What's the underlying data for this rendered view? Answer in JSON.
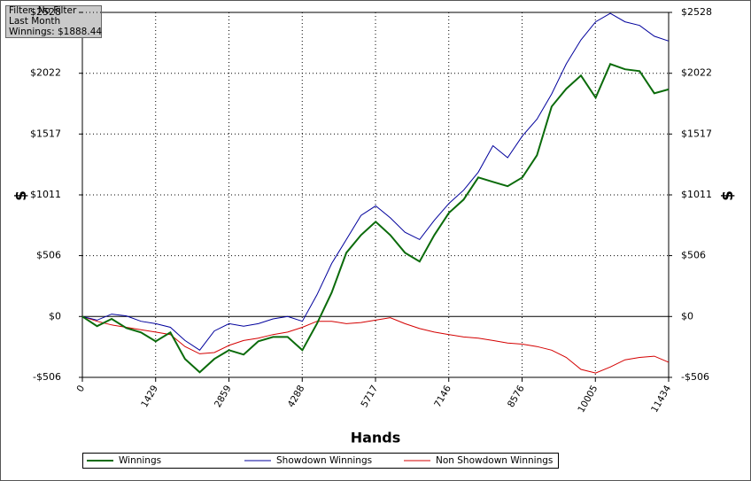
{
  "chart_data": {
    "type": "line",
    "info": [
      "Filter: No Filter",
      "Last Month",
      "Winnings: $1888.44"
    ],
    "xlabel": "Hands",
    "ylabel": "$",
    "y2label": "$",
    "x": [
      0,
      286,
      572,
      858,
      1144,
      1430,
      1716,
      2002,
      2288,
      2574,
      2860,
      3146,
      3432,
      3718,
      4004,
      4290,
      4576,
      4862,
      5148,
      5434,
      5720,
      6006,
      6292,
      6578,
      6864,
      7150,
      7436,
      7722,
      8008,
      8294,
      8580,
      8866,
      9152,
      9438,
      9724,
      10010,
      10296,
      10582,
      10868,
      11154,
      11434
    ],
    "series": [
      {
        "name": "Winnings",
        "color": "#0b6b0b",
        "width": 2,
        "values": [
          0,
          -80,
          -20,
          -96,
          -133,
          -206,
          -133,
          -353,
          -464,
          -353,
          -280,
          -317,
          -206,
          -170,
          -170,
          -280,
          -59,
          199,
          530,
          677,
          788,
          677,
          530,
          457,
          677,
          862,
          972,
          1156,
          1119,
          1083,
          1156,
          1340,
          1745,
          1893,
          2003,
          1819,
          2099,
          2055,
          2040,
          1856,
          1888
        ]
      },
      {
        "name": "Showdown Winnings",
        "color": "#00009c",
        "width": 1,
        "values": [
          0,
          -30,
          20,
          5,
          -40,
          -60,
          -90,
          -200,
          -280,
          -120,
          -60,
          -80,
          -60,
          -20,
          0,
          -40,
          180,
          440,
          640,
          840,
          920,
          820,
          700,
          640,
          800,
          940,
          1050,
          1200,
          1420,
          1320,
          1500,
          1640,
          1850,
          2100,
          2300,
          2450,
          2520,
          2450,
          2420,
          2330,
          2290
        ]
      },
      {
        "name": "Non Showdown Winnings",
        "color": "#d40000",
        "width": 1,
        "values": [
          0,
          -40,
          -70,
          -90,
          -110,
          -130,
          -150,
          -250,
          -310,
          -300,
          -240,
          -200,
          -180,
          -150,
          -130,
          -90,
          -40,
          -40,
          -60,
          -50,
          -30,
          -10,
          -60,
          -100,
          -130,
          -150,
          -170,
          -180,
          -200,
          -220,
          -230,
          -250,
          -280,
          -340,
          -440,
          -470,
          -420,
          -360,
          -340,
          -330,
          -380
        ]
      }
    ],
    "xlim": [
      0,
      11434
    ],
    "xticks": [
      0,
      1429,
      2859,
      4288,
      5717,
      7146,
      8576,
      10005,
      11434
    ],
    "ylim": [
      -506,
      2528
    ],
    "yticks": [
      {
        "value": -506,
        "label": "-$506"
      },
      {
        "value": 0,
        "label": "$0"
      },
      {
        "value": 506,
        "label": "$506"
      },
      {
        "value": 1011,
        "label": "$1011"
      },
      {
        "value": 1517,
        "label": "$1517"
      },
      {
        "value": 2022,
        "label": "$2022"
      },
      {
        "value": 2528,
        "label": "$2528"
      }
    ],
    "y2lim": [
      -506,
      2528
    ],
    "y2ticks": [
      {
        "value": -506,
        "label": "-$506"
      },
      {
        "value": 0,
        "label": "$0"
      },
      {
        "value": 506,
        "label": "$506"
      },
      {
        "value": 1011,
        "label": "$1011"
      },
      {
        "value": 1517,
        "label": "$1517"
      },
      {
        "value": 2022,
        "label": "$2022"
      },
      {
        "value": 2528,
        "label": "$2528"
      }
    ],
    "grid": true
  }
}
